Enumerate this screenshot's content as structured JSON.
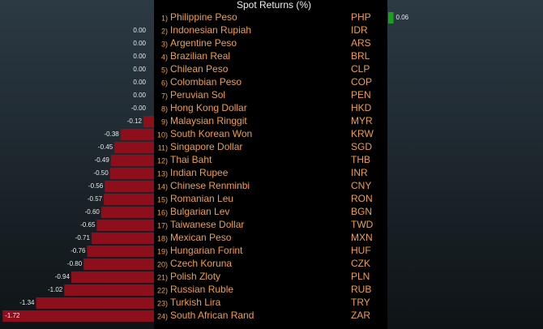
{
  "chart_data": {
    "type": "bar",
    "orientation": "horizontal",
    "title": "Spot Returns (%)",
    "ranks": [
      "1)",
      "2)",
      "3)",
      "4)",
      "5)",
      "6)",
      "7)",
      "8)",
      "9)",
      "10)",
      "11)",
      "12)",
      "13)",
      "14)",
      "15)",
      "16)",
      "17)",
      "18)",
      "19)",
      "20)",
      "21)",
      "22)",
      "23)",
      "24)"
    ],
    "categories": [
      "Philippine Peso",
      "Indonesian Rupiah",
      "Argentine Peso",
      "Brazilian Real",
      "Chilean Peso",
      "Colombian Peso",
      "Peruvian Sol",
      "Hong Kong Dollar",
      "Malaysian Ringgit",
      "South Korean Won",
      "Singapore Dollar",
      "Thai Baht",
      "Indian Rupee",
      "Chinese Renminbi",
      "Romanian Leu",
      "Bulgarian Lev",
      "Taiwanese Dollar",
      "Mexican Peso",
      "Hungarian Forint",
      "Czech Koruna",
      "Polish Zloty",
      "Russian Ruble",
      "Turkish Lira",
      "South African Rand"
    ],
    "codes": [
      "PHP",
      "IDR",
      "ARS",
      "BRL",
      "CLP",
      "COP",
      "PEN",
      "HKD",
      "MYR",
      "KRW",
      "SGD",
      "THB",
      "INR",
      "CNY",
      "RON",
      "BGN",
      "TWD",
      "MXN",
      "HUF",
      "CZK",
      "PLN",
      "RUB",
      "TRY",
      "ZAR"
    ],
    "values": [
      0.06,
      0,
      0,
      0,
      0,
      0,
      0,
      0,
      -0.12,
      -0.38,
      -0.45,
      -0.49,
      -0.5,
      -0.56,
      -0.57,
      -0.6,
      -0.65,
      -0.71,
      -0.76,
      -0.8,
      -0.94,
      -1.02,
      -1.34,
      -1.72
    ],
    "value_labels": [
      "0.06",
      "0.00",
      "0.00",
      "0.00",
      "0.00",
      "0.00",
      "0.00",
      "-0.00",
      "-0.12",
      "-0.38",
      "-0.45",
      "-0.49",
      "-0.50",
      "-0.56",
      "-0.57",
      "-0.60",
      "-0.65",
      "-0.71",
      "-0.76",
      "-0.80",
      "-0.94",
      "-1.02",
      "-1.34",
      "-1.72"
    ],
    "positive_color": "#1aa01a",
    "negative_color": "#8e0f1c",
    "xlim": [
      -1.75,
      1.75
    ]
  }
}
